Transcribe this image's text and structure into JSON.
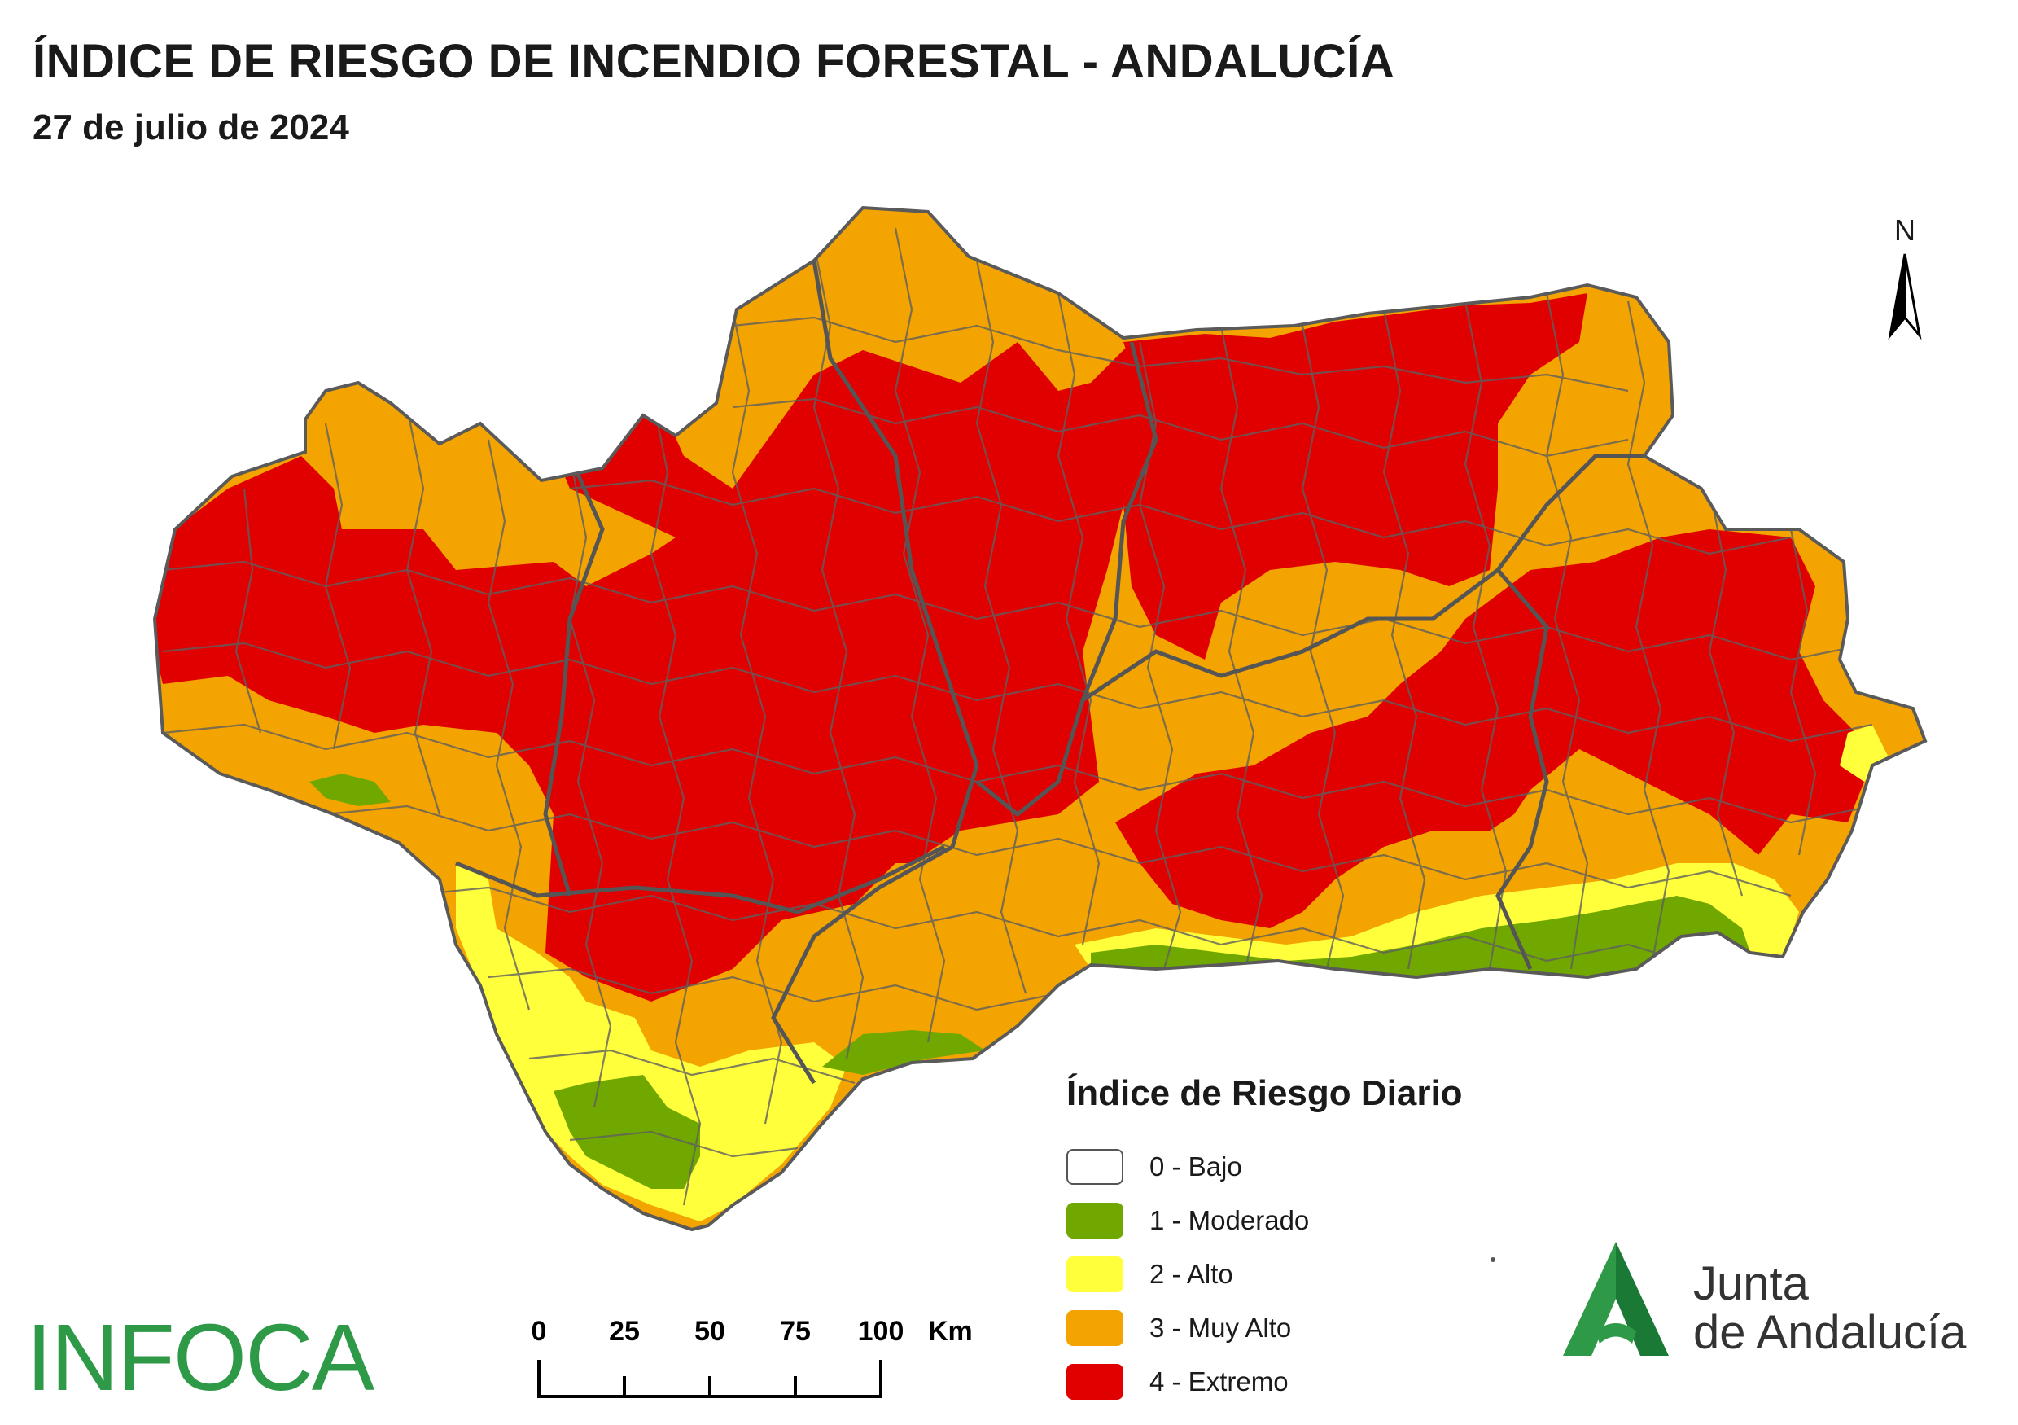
{
  "header": {
    "title": "ÍNDICE DE RIESGO DE INCENDIO FORESTAL - ANDALUCÍA",
    "subtitle": "27 de julio de 2024"
  },
  "map": {
    "north_label": "N",
    "colors": {
      "bajo": "#ffffff",
      "moderado": "#70a800",
      "alto": "#ffff3c",
      "muy_alto": "#f3a400",
      "extremo": "#e00000",
      "border": "#5a5a5a"
    }
  },
  "legend": {
    "title": "Índice de Riesgo Diario",
    "items": [
      {
        "label": "0 - Bajo",
        "color": "#ffffff"
      },
      {
        "label": "1 - Moderado",
        "color": "#70a800"
      },
      {
        "label": "2 - Alto",
        "color": "#ffff3c"
      },
      {
        "label": "3 - Muy Alto",
        "color": "#f3a400"
      },
      {
        "label": "4 - Extremo",
        "color": "#e00000"
      }
    ]
  },
  "scalebar": {
    "ticks": [
      "0",
      "25",
      "50",
      "75",
      "100"
    ],
    "unit": "Km"
  },
  "logos": {
    "infoca": "INFOCA",
    "junta_line1": "Junta",
    "junta_line2": "de Andalucía"
  }
}
